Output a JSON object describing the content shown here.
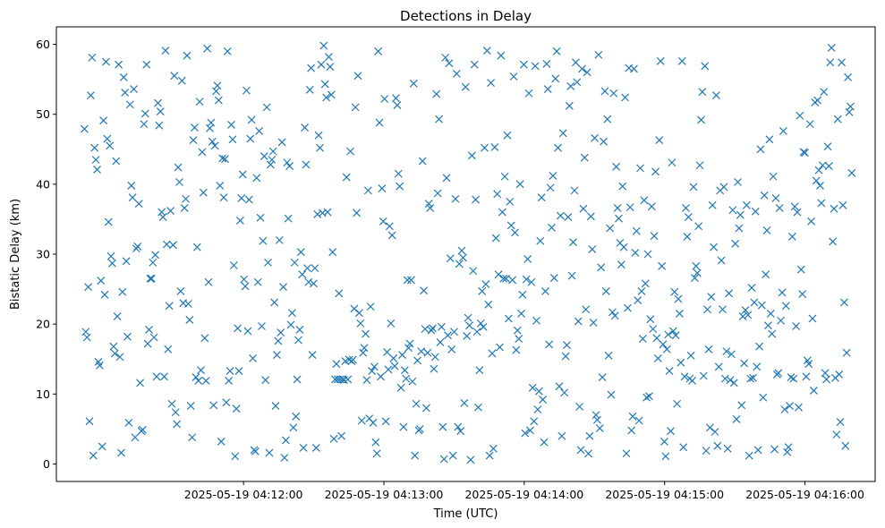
{
  "chart_data": {
    "type": "scatter",
    "title": "Detections in Delay",
    "xlabel": "Time (UTC)",
    "ylabel": "Bistatic Delay (km)",
    "marker": "x",
    "color": "#1f77b4",
    "grid": false,
    "legend": "none",
    "x_start": "2025-05-19 04:10:52",
    "x_end": "2025-05-19 04:16:20",
    "xlim": [
      "2025-05-19 04:10:40",
      "2025-05-19 04:16:30"
    ],
    "ylim": [
      -2.5,
      62.5
    ],
    "x_ticks": [
      {
        "value": "2025-05-19 04:12:00",
        "label": "2025-05-19 04:12:00"
      },
      {
        "value": "2025-05-19 04:13:00",
        "label": "2025-05-19 04:13:00"
      },
      {
        "value": "2025-05-19 04:14:00",
        "label": "2025-05-19 04:14:00"
      },
      {
        "value": "2025-05-19 04:15:00",
        "label": "2025-05-19 04:15:00"
      },
      {
        "value": "2025-05-19 04:16:00",
        "label": "2025-05-19 04:16:00"
      }
    ],
    "y_ticks": [
      0,
      10,
      20,
      30,
      40,
      50,
      60
    ],
    "y": [
      47.9,
      18.9,
      18.1,
      25.3,
      6.1,
      52.7,
      58.1,
      1.2,
      45.2,
      43.5,
      42.1,
      14.6,
      14.1,
      26.2,
      2.5,
      49.1,
      24.2,
      57.5,
      46.5,
      34.6,
      45.5,
      29.7,
      28.7,
      16.8,
      15.8,
      43.3,
      21.1,
      57.1,
      15.3,
      1.6,
      24.6,
      55.3,
      53.1,
      29.0,
      18.2,
      5.9,
      51.4,
      39.8,
      38.1,
      53.6,
      3.8,
      30.8,
      31.1,
      37.2,
      11.6,
      4.7,
      4.9,
      48.6,
      50.1,
      57.1,
      17.2,
      19.2,
      26.5,
      26.5,
      28.8,
      18.1,
      29.9,
      12.5,
      51.6,
      48.4,
      50.4,
      36.0,
      35.3,
      12.5,
      59.1,
      31.4,
      16.4,
      22.6,
      36.2,
      8.6,
      31.3,
      55.5,
      7.4,
      5.7,
      42.4,
      40.3,
      24.7,
      54.8,
      23.0,
      36.6,
      37.9,
      58.4,
      22.9,
      20.6,
      8.3,
      3.8,
      46.3,
      48.1,
      12.4,
      31.0,
      11.9,
      51.8,
      13.4,
      44.6,
      38.8,
      18.0,
      11.9,
      59.4,
      26.0,
      48.0,
      48.8,
      46.1,
      8.4,
      45.5,
      53.3,
      54.1,
      52.0,
      39.8,
      3.2,
      43.7,
      38.1,
      43.6,
      8.8,
      59.0,
      11.9,
      13.3,
      48.5,
      46.4,
      28.4,
      1.1,
      7.9,
      19.4,
      13.3,
      34.8,
      38.0,
      41.4,
      26.4,
      25.4,
      53.4,
      19.0,
      37.8,
      46.5,
      49.2,
      15.1,
      2.0,
      1.8,
      40.9,
      26.0,
      47.6,
      35.2,
      19.7,
      31.9,
      44.0,
      12.0,
      51.0,
      28.8,
      1.6,
      42.8,
      43.5,
      44.7,
      23.1,
      8.3,
      15.6,
      17.6,
      32.0,
      18.8,
      46.0,
      25.3,
      0.9,
      3.4,
      43.1,
      35.1,
      42.6,
      19.9,
      21.6,
      5.2,
      28.8,
      6.8,
      12.1,
      17.7,
      19.2,
      30.3,
      27.1,
      2.3,
      48.1,
      42.8,
      28.0,
      26.0,
      53.5,
      56.6,
      15.6,
      25.8,
      28.0,
      2.3,
      35.7,
      47.0,
      45.2,
      57.1,
      35.9,
      59.8,
      54.3,
      52.4,
      36.0,
      58.2,
      56.8,
      52.8,
      30.3,
      3.6,
      12.1,
      14.3,
      12.1,
      24.4,
      12.1,
      4.0,
      12.1,
      12.0,
      14.7,
      41.0,
      12.1,
      14.9,
      44.7,
      14.7,
      14.9,
      22.2,
      51.0,
      35.9,
      55.5,
      21.6,
      20.1,
      6.2,
      15.9,
      16.6,
      18.6,
      12.0,
      39.1,
      6.5,
      22.5,
      13.3,
      5.9,
      13.9,
      3.1,
      1.5,
      59.0,
      48.8,
      12.5,
      39.4,
      34.7,
      52.2,
      6.1,
      16.0,
      13.5,
      34.0,
      20.1,
      32.7,
      15.1,
      14.0,
      52.3,
      51.3,
      41.5,
      39.7,
      10.9,
      15.6,
      5.3,
      13.4,
      12.2,
      26.3,
      16.6,
      17.2,
      26.3,
      11.8,
      54.4,
      1.2,
      8.6,
      14.8,
      4.8,
      5.0,
      16.1,
      43.3,
      24.8,
      19.3,
      8.0,
      15.9,
      37.2,
      36.6,
      19.1,
      19.4,
      13.6,
      15.3,
      52.9,
      38.7,
      49.3,
      17.4,
      19.6,
      5.3,
      0.7,
      58.1,
      40.9,
      18.4,
      57.3,
      29.4,
      16.4,
      1.2,
      18.9,
      37.9,
      55.8,
      5.3,
      28.6,
      4.7,
      30.5,
      29.5,
      8.7,
      53.9,
      18.3,
      20.9,
      19.8,
      0.6,
      44.1,
      27.6,
      57.1,
      37.8,
      18.9,
      8.1,
      13.4,
      20.1,
      24.7,
      19.6,
      45.2,
      25.7,
      59.1,
      22.8,
      1.2,
      54.5,
      15.8,
      2.2,
      45.3,
      32.3,
      38.6,
      27.1,
      16.7,
      58.4,
      36.0,
      26.5,
      41.1,
      26.5,
      47.0,
      20.8,
      37.5,
      34.1,
      26.3,
      55.4,
      33.1,
      16.3,
      19.1,
      17.9,
      40.0,
      21.5,
      24.2,
      57.1,
      4.4,
      26.4,
      29.3,
      53.0,
      4.8,
      26.0,
      10.9,
      6.1,
      56.9,
      20.5,
      7.8,
      10.4,
      31.9,
      38.1,
      9.2,
      3.1,
      24.7,
      57.2,
      53.6,
      17.1,
      39.5,
      33.8,
      41.2,
      26.6,
      55.1,
      59.0,
      45.2,
      11.1,
      35.5,
      4.0,
      47.3,
      10.2,
      15.4,
      17.0,
      35.3,
      51.2,
      54.0,
      26.9,
      31.7,
      39.1,
      57.4,
      54.6,
      20.4,
      8.2,
      2.0,
      56.5,
      36.5,
      43.8,
      22.1,
      56.0,
      1.5,
      4.0,
      35.4,
      30.7,
      20.2,
      46.6,
      7.0,
      6.3,
      58.5,
      5.1,
      28.1,
      12.4,
      46.1,
      53.3,
      24.7,
      49.3,
      15.5,
      33.7,
      9.9,
      21.7,
      53.0,
      21.2,
      42.5,
      36.6,
      35.1,
      31.6,
      28.5,
      39.7,
      31.0,
      52.4,
      1.5,
      22.3,
      56.6,
      36.7,
      4.8,
      6.8,
      56.5,
      30.2,
      33.3,
      23.4,
      6.2,
      42.3,
      24.7,
      17.9,
      37.7,
      25.8,
      9.5,
      30.0,
      9.7,
      20.7,
      36.8,
      19.3,
      32.6,
      41.8,
      18.0,
      15.1,
      46.3,
      57.6,
      28.3,
      17.1,
      3.2,
      1.1,
      16.4,
      18.5,
      13.3,
      4.7,
      43.1,
      19.0,
      24.6,
      18.4,
      8.6,
      23.6,
      21.5,
      14.5,
      57.6,
      2.4,
      12.5,
      36.6,
      32.5,
      35.3,
      12.2,
      15.5,
      11.9,
      39.6,
      26.6,
      28.3,
      27.3,
      34.0,
      42.7,
      49.2,
      53.2,
      12.6,
      56.9,
      1.9,
      22.1,
      16.4,
      5.2,
      23.9,
      37.0,
      31.0,
      4.6,
      52.7,
      2.6,
      13.9,
      39.1,
      29.1,
      22.1,
      39.6,
      12.2,
      16.1,
      2.2,
      24.4,
      12.0,
      15.7,
      36.3,
      11.6,
      31.5,
      6.4,
      40.3,
      33.7,
      35.6,
      8.4,
      21.1,
      14.4,
      22.0,
      37.0,
      21.3,
      1.2,
      12.2,
      25.2,
      12.3,
      23.1,
      36.1,
      13.9,
      2.0,
      16.8,
      45.0,
      22.7,
      9.5,
      38.4,
      27.1,
      33.4,
      19.8,
      46.4,
      21.5,
      18.6,
      41.1,
      2.1,
      38.0,
      12.8,
      13.0,
      36.6,
      20.5,
      24.5,
      47.6,
      7.8,
      22.6,
      1.7,
      2.4,
      8.3,
      12.4,
      32.5,
      12.2,
      36.8,
      19.7,
      36.0,
      8.1,
      49.8,
      27.8,
      24.3,
      44.6,
      44.5,
      12.5,
      14.8,
      14.3,
      48.6,
      34.7,
      20.8,
      10.5,
      51.7,
      40.5,
      52.0,
      42.0,
      39.8,
      37.3,
      42.7,
      53.2,
      13.0,
      12.1,
      45.4,
      42.6,
      57.4,
      59.5,
      31.8,
      36.5,
      12.3,
      4.2,
      49.3,
      12.8,
      6.0,
      57.4,
      37.0,
      23.1,
      2.6,
      15.9,
      55.3,
      50.3,
      51.1,
      41.6
    ]
  }
}
